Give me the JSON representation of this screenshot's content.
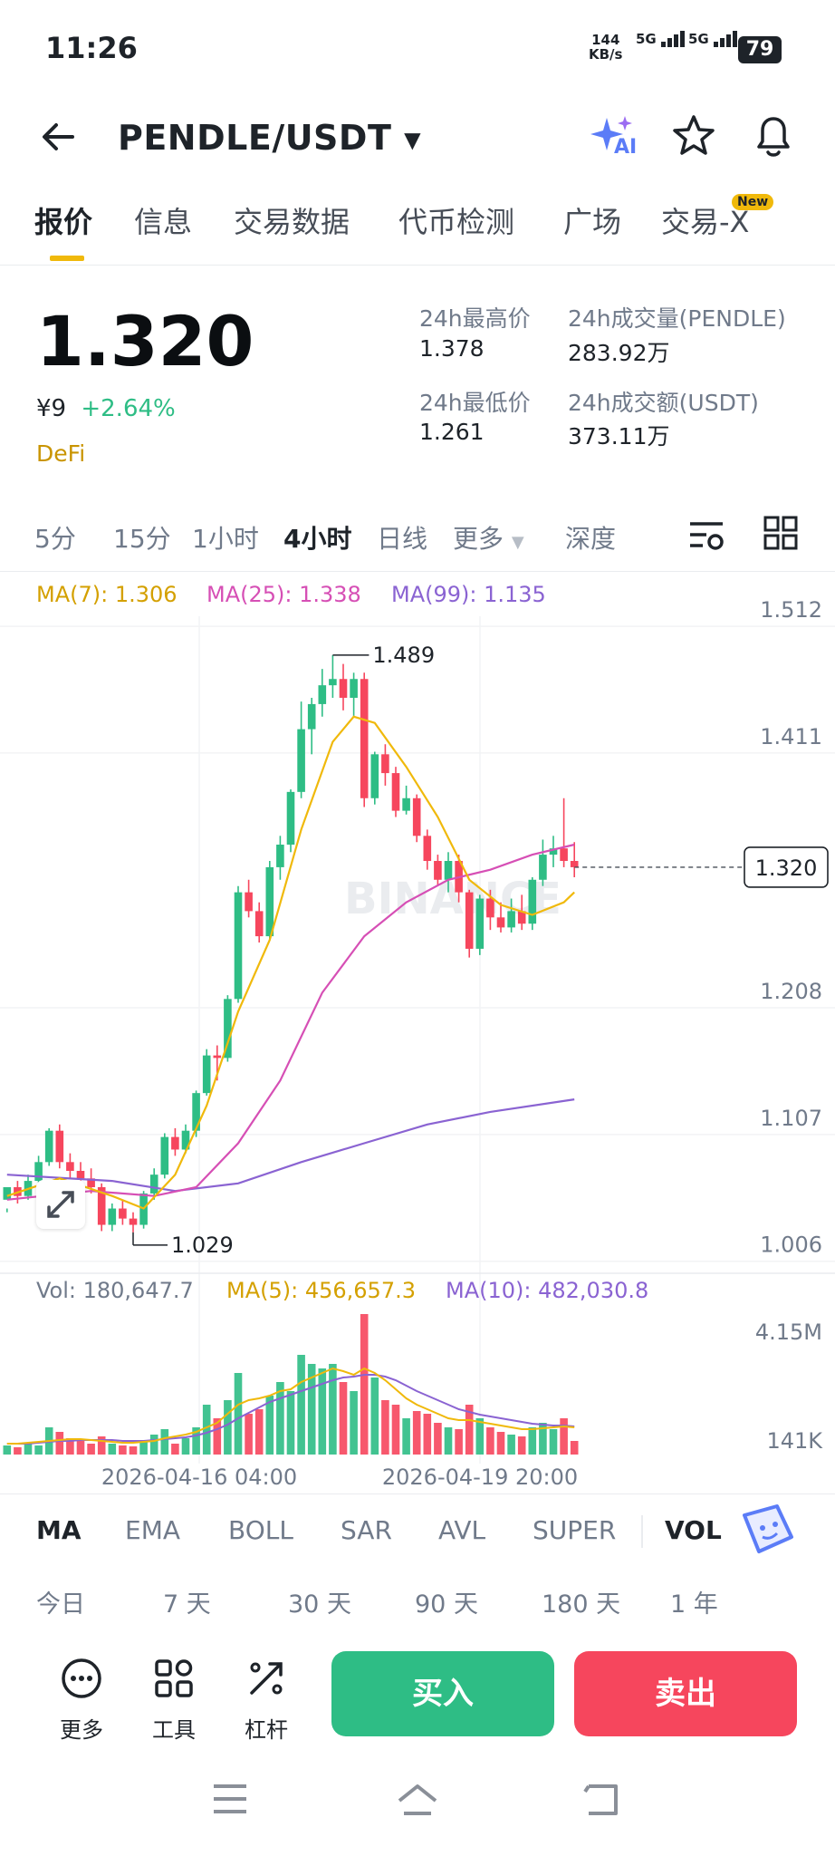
{
  "status_bar": {
    "time": "11:26",
    "net_speed_value": "144",
    "net_speed_unit": "KB/s",
    "sig1": "5G",
    "sig2": "5G",
    "battery": "79"
  },
  "header": {
    "title": "PENDLE/USDT",
    "ai_label": "AI",
    "ai_icon": "ai-sparkle-icon",
    "star_icon": "star-icon",
    "bell_icon": "bell-icon"
  },
  "tabs": [
    {
      "label": "报价",
      "active": true
    },
    {
      "label": "信息"
    },
    {
      "label": "交易数据"
    },
    {
      "label": "代币检测"
    },
    {
      "label": "广场"
    },
    {
      "label": "交易-X"
    }
  ],
  "tab_badge": "New",
  "price": {
    "last": "1.320",
    "cny": "¥9",
    "change": "+2.64%",
    "tag": "DeFi",
    "high_label": "24h最高价",
    "high": "1.378",
    "low_label": "24h最低价",
    "low": "1.261",
    "vol_label": "24h成交量(PENDLE)",
    "vol": "283.92万",
    "amount_label": "24h成交额(USDT)",
    "amount": "373.11万"
  },
  "intervals": [
    {
      "label": "5分"
    },
    {
      "label": "15分"
    },
    {
      "label": "1小时"
    },
    {
      "label": "4小时",
      "active": true
    },
    {
      "label": "日线"
    },
    {
      "label": "更多"
    },
    {
      "label": "深度"
    }
  ],
  "chart_legend": {
    "ma7": "MA(7): 1.306",
    "ma25": "MA(25): 1.338",
    "ma99": "MA(99): 1.135",
    "vol": "Vol: 180,647.7",
    "vma5": "MA(5): 456,657.3",
    "vma10": "MA(10): 482,030.8"
  },
  "colors": {
    "up": "#2ebd85",
    "down": "#f6465d",
    "ma7": "#f0b90b",
    "ma25": "#d64fb5",
    "ma99": "#8a63d2"
  },
  "chart_data": {
    "type": "candlestick",
    "watermark": "BINANCE",
    "y_ticks": [
      "1.512",
      "1.411",
      "1.208",
      "1.107",
      "1.006"
    ],
    "y_tick_values": [
      1.512,
      1.411,
      1.208,
      1.107,
      1.006
    ],
    "ylim": [
      1.0,
      1.52
    ],
    "current_price": "1.320",
    "high_mark": "1.489",
    "low_mark": "1.029",
    "x_labels": [
      "2026-04-16 04:00",
      "2026-04-19 20:00"
    ],
    "vol_ticks": [
      "4.15M",
      "141K"
    ],
    "candles": [
      [
        1.055,
        1.065,
        1.048,
        1.045
      ],
      [
        1.065,
        1.058,
        1.07,
        1.052
      ],
      [
        1.058,
        1.07,
        1.075,
        1.055
      ],
      [
        1.07,
        1.085,
        1.09,
        1.066
      ],
      [
        1.085,
        1.11,
        1.112,
        1.082
      ],
      [
        1.11,
        1.085,
        1.115,
        1.08
      ],
      [
        1.085,
        1.078,
        1.092,
        1.072
      ],
      [
        1.078,
        1.072,
        1.085,
        1.068
      ],
      [
        1.072,
        1.065,
        1.08,
        1.06
      ],
      [
        1.065,
        1.035,
        1.068,
        1.03
      ],
      [
        1.035,
        1.048,
        1.052,
        1.03
      ],
      [
        1.048,
        1.04,
        1.055,
        1.035
      ],
      [
        1.04,
        1.035,
        1.045,
        1.029
      ],
      [
        1.035,
        1.06,
        1.062,
        1.032
      ],
      [
        1.06,
        1.075,
        1.08,
        1.055
      ],
      [
        1.075,
        1.105,
        1.108,
        1.072
      ],
      [
        1.105,
        1.095,
        1.112,
        1.09
      ],
      [
        1.095,
        1.11,
        1.115,
        1.092
      ],
      [
        1.11,
        1.14,
        1.142,
        1.105
      ],
      [
        1.14,
        1.17,
        1.175,
        1.138
      ],
      [
        1.17,
        1.168,
        1.178,
        1.15
      ],
      [
        1.168,
        1.215,
        1.218,
        1.165
      ],
      [
        1.215,
        1.3,
        1.305,
        1.212
      ],
      [
        1.3,
        1.285,
        1.31,
        1.28
      ],
      [
        1.285,
        1.265,
        1.292,
        1.26
      ],
      [
        1.265,
        1.32,
        1.325,
        1.262
      ],
      [
        1.32,
        1.338,
        1.345,
        1.31
      ],
      [
        1.338,
        1.38,
        1.382,
        1.332
      ],
      [
        1.38,
        1.43,
        1.452,
        1.375
      ],
      [
        1.43,
        1.45,
        1.455,
        1.41
      ],
      [
        1.45,
        1.465,
        1.478,
        1.44
      ],
      [
        1.465,
        1.47,
        1.489,
        1.455
      ],
      [
        1.47,
        1.455,
        1.482,
        1.445
      ],
      [
        1.455,
        1.47,
        1.475,
        1.44
      ],
      [
        1.47,
        1.375,
        1.475,
        1.368
      ],
      [
        1.375,
        1.41,
        1.412,
        1.37
      ],
      [
        1.41,
        1.395,
        1.418,
        1.385
      ],
      [
        1.395,
        1.365,
        1.4,
        1.36
      ],
      [
        1.365,
        1.375,
        1.385,
        1.362
      ],
      [
        1.375,
        1.345,
        1.378,
        1.34
      ],
      [
        1.345,
        1.325,
        1.35,
        1.318
      ],
      [
        1.325,
        1.31,
        1.33,
        1.305
      ],
      [
        1.31,
        1.325,
        1.332,
        1.3
      ],
      [
        1.325,
        1.3,
        1.33,
        1.292
      ],
      [
        1.3,
        1.255,
        1.302,
        1.248
      ],
      [
        1.255,
        1.295,
        1.298,
        1.25
      ],
      [
        1.295,
        1.28,
        1.302,
        1.27
      ],
      [
        1.28,
        1.272,
        1.292,
        1.268
      ],
      [
        1.272,
        1.285,
        1.295,
        1.268
      ],
      [
        1.285,
        1.275,
        1.298,
        1.27
      ],
      [
        1.275,
        1.31,
        1.312,
        1.27
      ],
      [
        1.31,
        1.33,
        1.342,
        1.305
      ],
      [
        1.33,
        1.335,
        1.345,
        1.32
      ],
      [
        1.335,
        1.325,
        1.375,
        1.32
      ],
      [
        1.325,
        1.32,
        1.34,
        1.312
      ]
    ],
    "ma7_points": [
      [
        0,
        1.058
      ],
      [
        5,
        1.072
      ],
      [
        10,
        1.058
      ],
      [
        13,
        1.048
      ],
      [
        16,
        1.075
      ],
      [
        19,
        1.13
      ],
      [
        22,
        1.205
      ],
      [
        25,
        1.262
      ],
      [
        28,
        1.35
      ],
      [
        31,
        1.42
      ],
      [
        33,
        1.44
      ],
      [
        35,
        1.435
      ],
      [
        38,
        1.4
      ],
      [
        41,
        1.36
      ],
      [
        44,
        1.31
      ],
      [
        47,
        1.29
      ],
      [
        50,
        1.282
      ],
      [
        53,
        1.292
      ],
      [
        54,
        1.3
      ]
    ],
    "ma25_points": [
      [
        0,
        1.055
      ],
      [
        8,
        1.062
      ],
      [
        14,
        1.058
      ],
      [
        18,
        1.065
      ],
      [
        22,
        1.1
      ],
      [
        26,
        1.15
      ],
      [
        30,
        1.22
      ],
      [
        34,
        1.265
      ],
      [
        38,
        1.292
      ],
      [
        42,
        1.31
      ],
      [
        46,
        1.318
      ],
      [
        50,
        1.33
      ],
      [
        54,
        1.338
      ]
    ],
    "ma99_points": [
      [
        0,
        1.075
      ],
      [
        10,
        1.07
      ],
      [
        16,
        1.062
      ],
      [
        22,
        1.068
      ],
      [
        28,
        1.085
      ],
      [
        34,
        1.1
      ],
      [
        40,
        1.115
      ],
      [
        46,
        1.125
      ],
      [
        54,
        1.135
      ]
    ],
    "volumes": [
      0.1,
      0.08,
      0.12,
      0.1,
      0.3,
      0.25,
      0.18,
      0.15,
      0.12,
      0.2,
      0.12,
      0.1,
      0.09,
      0.15,
      0.22,
      0.28,
      0.12,
      0.18,
      0.3,
      0.55,
      0.4,
      0.6,
      0.9,
      0.45,
      0.5,
      0.65,
      0.8,
      0.7,
      1.1,
      1.0,
      0.95,
      1.0,
      0.8,
      0.7,
      1.55,
      0.85,
      0.6,
      0.55,
      0.4,
      0.48,
      0.45,
      0.35,
      0.3,
      0.28,
      0.55,
      0.4,
      0.3,
      0.25,
      0.22,
      0.2,
      0.3,
      0.35,
      0.28,
      0.4,
      0.15
    ],
    "vol_ma5": [
      0.12,
      0.12,
      0.13,
      0.14,
      0.15,
      0.16,
      0.17,
      0.17,
      0.16,
      0.15,
      0.14,
      0.13,
      0.13,
      0.14,
      0.15,
      0.18,
      0.2,
      0.22,
      0.25,
      0.3,
      0.35,
      0.45,
      0.55,
      0.6,
      0.62,
      0.65,
      0.7,
      0.72,
      0.8,
      0.85,
      0.9,
      0.95,
      0.92,
      0.88,
      0.95,
      0.9,
      0.82,
      0.72,
      0.62,
      0.55,
      0.5,
      0.45,
      0.4,
      0.38,
      0.38,
      0.36,
      0.34,
      0.32,
      0.3,
      0.28,
      0.28,
      0.29,
      0.3,
      0.31,
      0.3
    ],
    "vol_ma10": [
      0.12,
      0.12,
      0.12,
      0.13,
      0.14,
      0.15,
      0.15,
      0.16,
      0.16,
      0.16,
      0.16,
      0.15,
      0.15,
      0.15,
      0.16,
      0.17,
      0.18,
      0.19,
      0.21,
      0.24,
      0.28,
      0.33,
      0.4,
      0.46,
      0.52,
      0.58,
      0.62,
      0.66,
      0.7,
      0.74,
      0.78,
      0.82,
      0.85,
      0.86,
      0.88,
      0.88,
      0.86,
      0.82,
      0.76,
      0.7,
      0.65,
      0.6,
      0.55,
      0.5,
      0.47,
      0.44,
      0.42,
      0.4,
      0.38,
      0.36,
      0.34,
      0.33,
      0.32,
      0.32,
      0.31
    ]
  },
  "indicators": [
    {
      "label": "MA",
      "active": true
    },
    {
      "label": "EMA"
    },
    {
      "label": "BOLL"
    },
    {
      "label": "SAR"
    },
    {
      "label": "AVL"
    },
    {
      "label": "SUPER"
    },
    {
      "label": "VOL",
      "active": true
    }
  ],
  "performance": [
    {
      "label": "今日"
    },
    {
      "label": "7 天"
    },
    {
      "label": "30 天"
    },
    {
      "label": "90 天"
    },
    {
      "label": "180 天"
    },
    {
      "label": "1 年"
    }
  ],
  "bottom_bar": {
    "more": "更多",
    "tools": "工具",
    "leverage": "杠杆",
    "buy": "买入",
    "sell": "卖出"
  }
}
